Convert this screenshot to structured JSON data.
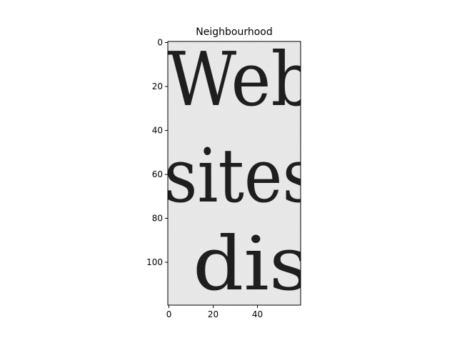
{
  "chart_data": {
    "type": "heatmap",
    "title": "Neighbourhood",
    "xlabel": "",
    "ylabel": "",
    "colormap": "gray",
    "xlim": [
      -0.5,
      59.5
    ],
    "ylim": [
      119.5,
      -0.5
    ],
    "x_ticks": [
      0,
      20,
      40
    ],
    "y_ticks": [
      0,
      20,
      40,
      60,
      80,
      100
    ],
    "image_content": {
      "kind": "grayscale scan of printed text",
      "visible_text_lines": [
        "Web",
        "sites",
        "dis"
      ],
      "background_color": "#ececec",
      "ink_color": "#1e1e1e"
    }
  }
}
